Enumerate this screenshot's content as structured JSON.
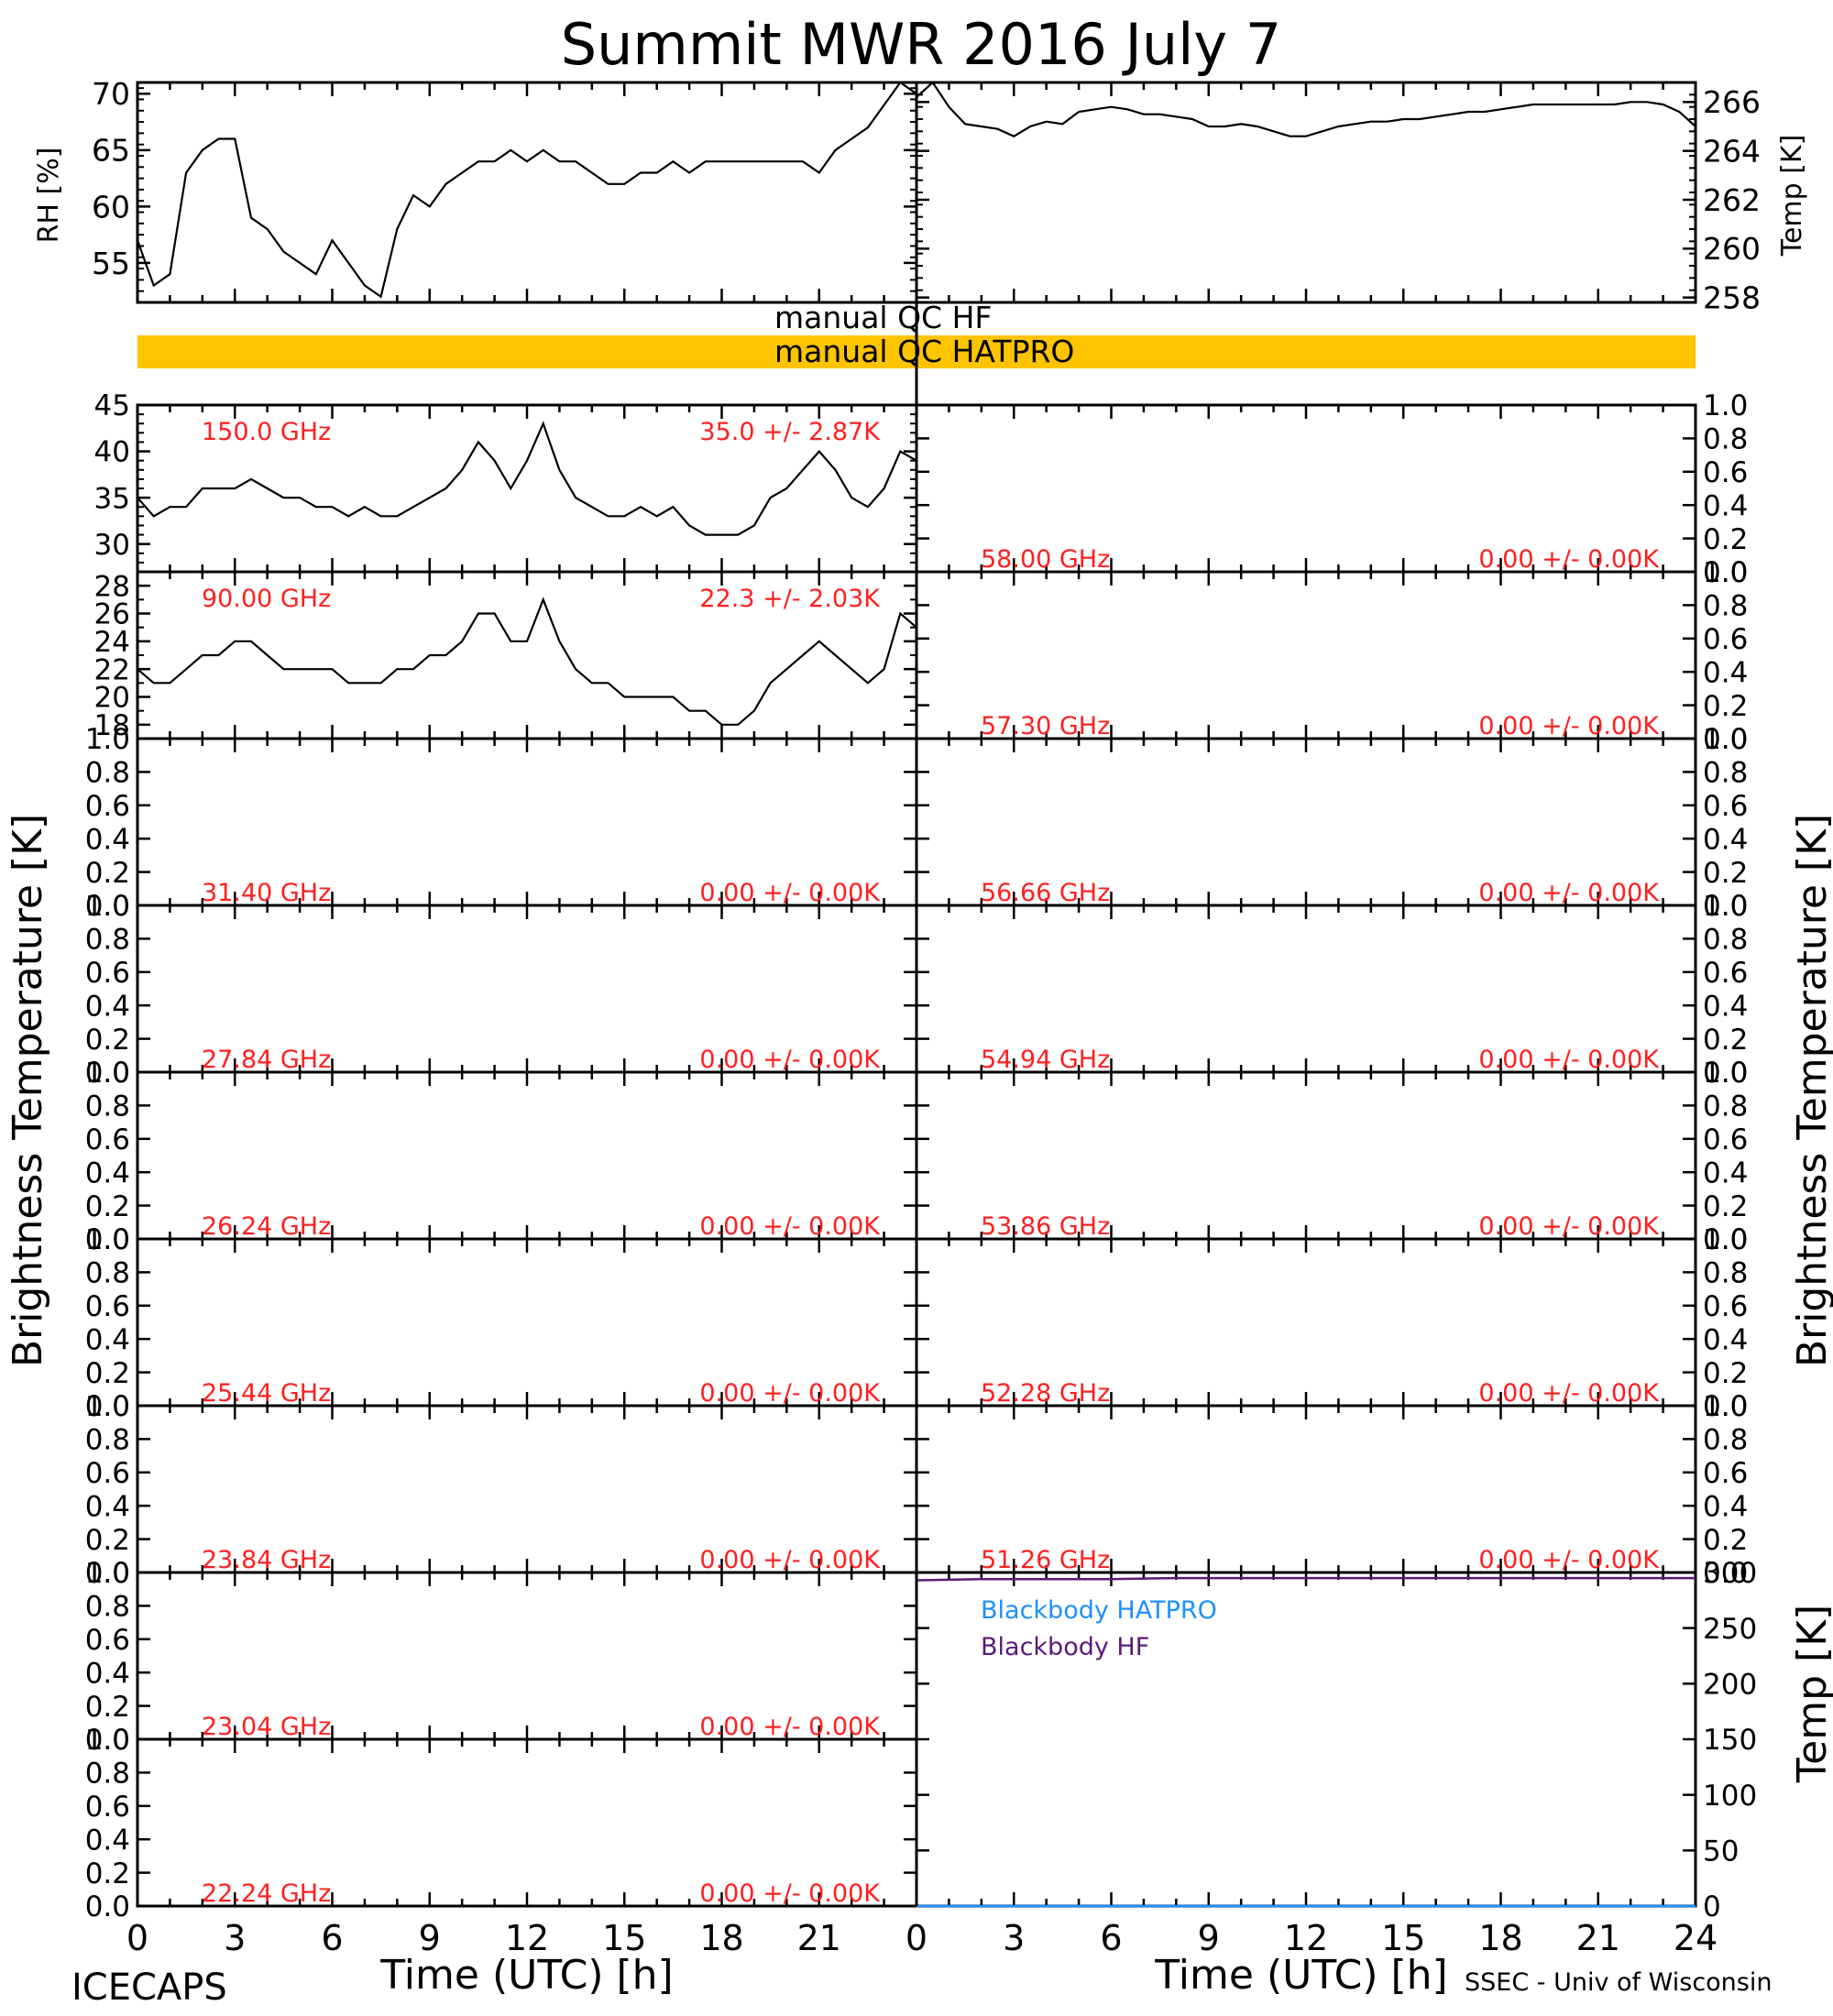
{
  "title": "Summit MWR 2016 July  7",
  "footer_left": "ICECAPS",
  "footer_right": "SSEC - Univ of Wisconsin",
  "qc": {
    "hf_label": "manual QC HF",
    "hatpro_label": "manual QC HATPRO",
    "hatpro_color": "#FFC400"
  },
  "colors": {
    "ink": "#000000",
    "annotation": "#FF2020",
    "blackbody_hatpro": "#1E90FF",
    "blackbody_hf": "#5A1A7A"
  },
  "chart_data": [
    {
      "id": "rh",
      "type": "line",
      "ylabel": "RH [%]",
      "ylim": [
        51.5,
        71
      ],
      "yticks": [
        55,
        60,
        65,
        70
      ],
      "x": [
        0,
        0.5,
        1,
        1.5,
        2,
        2.5,
        3,
        3.5,
        4,
        4.5,
        5,
        5.5,
        6,
        6.5,
        7,
        7.5,
        8,
        8.5,
        9,
        9.5,
        10,
        10.5,
        11,
        11.5,
        12,
        12.5,
        13,
        13.5,
        14,
        14.5,
        15,
        15.5,
        16,
        16.5,
        17,
        17.5,
        18,
        18.5,
        19,
        19.5,
        20,
        20.5,
        21,
        21.5,
        22,
        22.5,
        23,
        23.5,
        24
      ],
      "values": [
        57,
        53,
        54,
        63,
        65,
        66,
        66,
        59,
        58,
        56,
        55,
        54,
        57,
        55,
        53,
        52,
        58,
        61,
        60,
        62,
        63,
        64,
        64,
        65,
        64,
        65,
        64,
        64,
        63,
        62,
        62,
        63,
        63,
        64,
        63,
        64,
        64,
        64,
        64,
        64,
        64,
        64,
        63,
        65,
        66,
        67,
        69,
        71,
        70
      ]
    },
    {
      "id": "temp",
      "type": "line",
      "ylabel": "Temp [K]",
      "ylim": [
        257.8,
        266.8
      ],
      "yticks": [
        258,
        260,
        262,
        264,
        266
      ],
      "x": [
        0,
        0.5,
        1,
        1.5,
        2,
        2.5,
        3,
        3.5,
        4,
        4.5,
        5,
        5.5,
        6,
        6.5,
        7,
        7.5,
        8,
        8.5,
        9,
        9.5,
        10,
        10.5,
        11,
        11.5,
        12,
        12.5,
        13,
        13.5,
        14,
        14.5,
        15,
        15.5,
        16,
        16.5,
        17,
        17.5,
        18,
        18.5,
        19,
        19.5,
        20,
        20.5,
        21,
        21.5,
        22,
        22.5,
        23,
        23.5,
        24
      ],
      "values": [
        266.2,
        266.8,
        265.8,
        265.1,
        265.0,
        264.9,
        264.6,
        265.0,
        265.2,
        265.1,
        265.6,
        265.7,
        265.8,
        265.7,
        265.5,
        265.5,
        265.4,
        265.3,
        265.0,
        265.0,
        265.1,
        265.0,
        264.8,
        264.6,
        264.6,
        264.8,
        265.0,
        265.1,
        265.2,
        265.2,
        265.3,
        265.3,
        265.4,
        265.5,
        265.6,
        265.6,
        265.7,
        265.8,
        265.9,
        265.9,
        265.9,
        265.9,
        265.9,
        265.9,
        266.0,
        266.0,
        265.9,
        265.6,
        265.0
      ]
    },
    {
      "id": "tb_150",
      "type": "line",
      "freq_label": "150.0 GHz",
      "stat_label": "35.0 +/- 2.87K",
      "ylim": [
        27,
        45
      ],
      "yticks": [
        30,
        35,
        40,
        45
      ],
      "x": [
        0,
        0.5,
        1,
        1.5,
        2,
        2.5,
        3,
        3.5,
        4,
        4.5,
        5,
        5.5,
        6,
        6.5,
        7,
        7.5,
        8,
        8.5,
        9,
        9.5,
        10,
        10.5,
        11,
        11.5,
        12,
        12.5,
        13,
        13.5,
        14,
        14.5,
        15,
        15.5,
        16,
        16.5,
        17,
        17.5,
        18,
        18.5,
        19,
        19.5,
        20,
        20.5,
        21,
        21.5,
        22,
        22.5,
        23,
        23.5,
        24
      ],
      "values": [
        35,
        33,
        34,
        34,
        36,
        36,
        36,
        37,
        36,
        35,
        35,
        34,
        34,
        33,
        34,
        33,
        33,
        34,
        35,
        36,
        38,
        41,
        39,
        36,
        39,
        43,
        38,
        35,
        34,
        33,
        33,
        34,
        33,
        34,
        32,
        31,
        31,
        31,
        32,
        35,
        36,
        38,
        40,
        38,
        35,
        34,
        36,
        40,
        39
      ]
    },
    {
      "id": "tb_90",
      "type": "line",
      "freq_label": "90.00 GHz",
      "stat_label": "22.3 +/- 2.03K",
      "ylim": [
        17,
        29
      ],
      "yticks": [
        18,
        20,
        22,
        24,
        26,
        28
      ],
      "x": [
        0,
        0.5,
        1,
        1.5,
        2,
        2.5,
        3,
        3.5,
        4,
        4.5,
        5,
        5.5,
        6,
        6.5,
        7,
        7.5,
        8,
        8.5,
        9,
        9.5,
        10,
        10.5,
        11,
        11.5,
        12,
        12.5,
        13,
        13.5,
        14,
        14.5,
        15,
        15.5,
        16,
        16.5,
        17,
        17.5,
        18,
        18.5,
        19,
        19.5,
        20,
        20.5,
        21,
        21.5,
        22,
        22.5,
        23,
        23.5,
        24
      ],
      "values": [
        22,
        21,
        21,
        22,
        23,
        23,
        24,
        24,
        23,
        22,
        22,
        22,
        22,
        21,
        21,
        21,
        22,
        22,
        23,
        23,
        24,
        26,
        26,
        24,
        24,
        27,
        24,
        22,
        21,
        21,
        20,
        20,
        20,
        20,
        19,
        19,
        18,
        18,
        19,
        21,
        22,
        23,
        24,
        23,
        22,
        21,
        22,
        26,
        25
      ]
    },
    {
      "id": "tb_31",
      "type": "line",
      "freq_label": "31.40 GHz",
      "stat_label": "0.00 +/- 0.00K",
      "ylim": [
        0,
        1
      ],
      "yticks": [
        0.0,
        0.2,
        0.4,
        0.6,
        0.8,
        1.0
      ]
    },
    {
      "id": "tb_27",
      "type": "line",
      "freq_label": "27.84 GHz",
      "stat_label": "0.00 +/- 0.00K",
      "ylim": [
        0,
        1
      ],
      "yticks": [
        0.0,
        0.2,
        0.4,
        0.6,
        0.8,
        1.0
      ]
    },
    {
      "id": "tb_26",
      "type": "line",
      "freq_label": "26.24 GHz",
      "stat_label": "0.00 +/- 0.00K",
      "ylim": [
        0,
        1
      ],
      "yticks": [
        0.0,
        0.2,
        0.4,
        0.6,
        0.8,
        1.0
      ]
    },
    {
      "id": "tb_25",
      "type": "line",
      "freq_label": "25.44 GHz",
      "stat_label": "0.00 +/- 0.00K",
      "ylim": [
        0,
        1
      ],
      "yticks": [
        0.0,
        0.2,
        0.4,
        0.6,
        0.8,
        1.0
      ]
    },
    {
      "id": "tb_238",
      "type": "line",
      "freq_label": "23.84 GHz",
      "stat_label": "0.00 +/- 0.00K",
      "ylim": [
        0,
        1
      ],
      "yticks": [
        0.0,
        0.2,
        0.4,
        0.6,
        0.8,
        1.0
      ]
    },
    {
      "id": "tb_230",
      "type": "line",
      "freq_label": "23.04 GHz",
      "stat_label": "0.00 +/- 0.00K",
      "ylim": [
        0,
        1
      ],
      "yticks": [
        0.0,
        0.2,
        0.4,
        0.6,
        0.8,
        1.0
      ]
    },
    {
      "id": "tb_222",
      "type": "line",
      "freq_label": "22.24 GHz",
      "stat_label": "0.00 +/- 0.00K",
      "ylim": [
        0,
        1
      ],
      "yticks": [
        0.0,
        0.2,
        0.4,
        0.6,
        0.8,
        1.0
      ]
    },
    {
      "id": "tb_58",
      "type": "line",
      "freq_label": "58.00 GHz",
      "stat_label": "0.00 +/- 0.00K",
      "ylim": [
        0,
        1
      ],
      "yticks": [
        0.0,
        0.2,
        0.4,
        0.6,
        0.8,
        1.0
      ]
    },
    {
      "id": "tb_573",
      "type": "line",
      "freq_label": "57.30 GHz",
      "stat_label": "0.00 +/- 0.00K",
      "ylim": [
        0,
        1
      ],
      "yticks": [
        0.0,
        0.2,
        0.4,
        0.6,
        0.8,
        1.0
      ]
    },
    {
      "id": "tb_5666",
      "type": "line",
      "freq_label": "56.66 GHz",
      "stat_label": "0.00 +/- 0.00K",
      "ylim": [
        0,
        1
      ],
      "yticks": [
        0.0,
        0.2,
        0.4,
        0.6,
        0.8,
        1.0
      ]
    },
    {
      "id": "tb_5494",
      "type": "line",
      "freq_label": "54.94 GHz",
      "stat_label": "0.00 +/- 0.00K",
      "ylim": [
        0,
        1
      ],
      "yticks": [
        0.0,
        0.2,
        0.4,
        0.6,
        0.8,
        1.0
      ]
    },
    {
      "id": "tb_5386",
      "type": "line",
      "freq_label": "53.86 GHz",
      "stat_label": "0.00 +/- 0.00K",
      "ylim": [
        0,
        1
      ],
      "yticks": [
        0.0,
        0.2,
        0.4,
        0.6,
        0.8,
        1.0
      ]
    },
    {
      "id": "tb_5228",
      "type": "line",
      "freq_label": "52.28 GHz",
      "stat_label": "0.00 +/- 0.00K",
      "ylim": [
        0,
        1
      ],
      "yticks": [
        0.0,
        0.2,
        0.4,
        0.6,
        0.8,
        1.0
      ]
    },
    {
      "id": "tb_5126",
      "type": "line",
      "freq_label": "51.26 GHz",
      "stat_label": "0.00 +/- 0.00K",
      "ylim": [
        0,
        1
      ],
      "yticks": [
        0.0,
        0.2,
        0.4,
        0.6,
        0.8,
        1.0
      ]
    },
    {
      "id": "blackbody",
      "type": "line",
      "ylabel": "Temp [K]",
      "ylim": [
        0,
        300
      ],
      "yticks": [
        0,
        50,
        100,
        150,
        200,
        250,
        300
      ],
      "series": [
        {
          "name": "Blackbody HATPRO",
          "x": [
            0,
            24
          ],
          "values": [
            0,
            0
          ]
        },
        {
          "name": "Blackbody HF",
          "x": [
            0,
            2,
            4,
            6,
            8,
            10,
            12,
            14,
            16,
            18,
            20,
            22,
            24
          ],
          "values": [
            293,
            294,
            294,
            294,
            295,
            295,
            295,
            295,
            295,
            295,
            295,
            295,
            295
          ]
        }
      ]
    }
  ],
  "axes": {
    "ylabel_tb": "Brightness Temperature [K]",
    "xlabel": "Time (UTC) [h]",
    "xticks_left": [
      "0",
      "3",
      "6",
      "9",
      "12",
      "15",
      "18",
      "21"
    ],
    "xticks_right": [
      "0",
      "3",
      "6",
      "9",
      "12",
      "15",
      "18",
      "21",
      "24"
    ],
    "xlim": [
      0,
      24
    ]
  }
}
